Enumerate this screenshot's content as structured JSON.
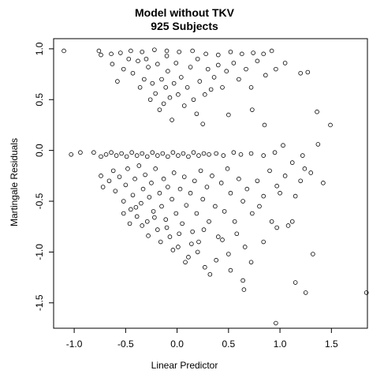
{
  "chart_data": {
    "type": "scatter",
    "title": "Model without TKV",
    "subtitle": "925 Subjects",
    "xlabel": "Linear Predictor",
    "ylabel": "Martingale Residuals",
    "xlim": [
      -1.2,
      1.85
    ],
    "ylim": [
      -1.75,
      1.1
    ],
    "x_ticks": [
      -1.0,
      -0.5,
      0.0,
      0.5,
      1.0,
      1.5
    ],
    "y_ticks": [
      -1.5,
      -1.0,
      -0.5,
      0.0,
      0.5,
      1.0
    ],
    "x_tick_labels": [
      "-1.0",
      "-0.5",
      "0.0",
      "0.5",
      "1.0",
      "1.5"
    ],
    "y_tick_labels": [
      "-1.5",
      "-1.0",
      "-0.5",
      "0.0",
      "0.5",
      "1.0"
    ],
    "grid": false,
    "marker": "open-circle",
    "n_points": 925,
    "points": [
      [
        -1.1,
        0.98
      ],
      [
        -0.76,
        0.98
      ],
      [
        -0.74,
        0.94
      ],
      [
        -0.64,
        0.95
      ],
      [
        -0.55,
        0.96
      ],
      [
        -0.45,
        0.98
      ],
      [
        -0.34,
        0.97
      ],
      [
        -0.22,
        0.99
      ],
      [
        -0.1,
        0.98
      ],
      [
        0.02,
        0.97
      ],
      [
        0.15,
        0.98
      ],
      [
        0.28,
        0.95
      ],
      [
        0.4,
        0.94
      ],
      [
        0.52,
        0.97
      ],
      [
        0.63,
        0.95
      ],
      [
        0.74,
        0.96
      ],
      [
        0.84,
        0.95
      ],
      [
        0.92,
        0.98
      ],
      [
        1.2,
        0.76
      ],
      [
        1.27,
        0.77
      ],
      [
        1.36,
        0.38
      ],
      [
        1.49,
        0.25
      ],
      [
        0.85,
        0.25
      ],
      [
        0.73,
        0.4
      ],
      [
        0.5,
        0.35
      ],
      [
        -0.63,
        0.85
      ],
      [
        -0.58,
        0.68
      ],
      [
        -0.52,
        0.8
      ],
      [
        -0.47,
        0.9
      ],
      [
        -0.43,
        0.76
      ],
      [
        -0.38,
        0.88
      ],
      [
        -0.36,
        0.62
      ],
      [
        -0.32,
        0.7
      ],
      [
        -0.28,
        0.82
      ],
      [
        -0.26,
        0.5
      ],
      [
        -0.24,
        0.66
      ],
      [
        -0.21,
        0.56
      ],
      [
        -0.19,
        0.85
      ],
      [
        -0.17,
        0.4
      ],
      [
        -0.15,
        0.7
      ],
      [
        -0.13,
        0.46
      ],
      [
        -0.11,
        0.62
      ],
      [
        -0.09,
        0.78
      ],
      [
        -0.07,
        0.52
      ],
      [
        -0.05,
        0.3
      ],
      [
        -0.03,
        0.66
      ],
      [
        -0.01,
        0.86
      ],
      [
        0.01,
        0.55
      ],
      [
        0.04,
        0.72
      ],
      [
        0.07,
        0.44
      ],
      [
        0.1,
        0.62
      ],
      [
        0.13,
        0.82
      ],
      [
        0.16,
        0.5
      ],
      [
        0.19,
        0.36
      ],
      [
        0.22,
        0.68
      ],
      [
        0.25,
        0.26
      ],
      [
        0.27,
        0.55
      ],
      [
        0.3,
        0.8
      ],
      [
        0.33,
        0.6
      ],
      [
        0.36,
        0.72
      ],
      [
        0.4,
        0.84
      ],
      [
        0.44,
        0.62
      ],
      [
        0.48,
        0.78
      ],
      [
        0.55,
        0.86
      ],
      [
        0.6,
        0.7
      ],
      [
        0.67,
        0.8
      ],
      [
        0.72,
        0.62
      ],
      [
        0.78,
        0.88
      ],
      [
        0.86,
        0.74
      ],
      [
        0.96,
        0.8
      ],
      [
        1.05,
        0.86
      ],
      [
        -0.3,
        0.9
      ],
      [
        -0.1,
        0.93
      ],
      [
        0.2,
        0.9
      ],
      [
        -1.03,
        -0.04
      ],
      [
        -0.94,
        -0.02
      ],
      [
        -0.81,
        -0.02
      ],
      [
        -0.74,
        -0.06
      ],
      [
        -0.69,
        -0.04
      ],
      [
        -0.64,
        -0.02
      ],
      [
        -0.59,
        -0.05
      ],
      [
        -0.54,
        -0.03
      ],
      [
        -0.49,
        -0.06
      ],
      [
        -0.44,
        -0.02
      ],
      [
        -0.39,
        -0.05
      ],
      [
        -0.34,
        -0.03
      ],
      [
        -0.29,
        -0.06
      ],
      [
        -0.24,
        -0.02
      ],
      [
        -0.19,
        -0.05
      ],
      [
        -0.14,
        -0.03
      ],
      [
        -0.09,
        -0.06
      ],
      [
        -0.04,
        -0.02
      ],
      [
        0.01,
        -0.05
      ],
      [
        0.06,
        -0.03
      ],
      [
        0.11,
        -0.06
      ],
      [
        0.16,
        -0.02
      ],
      [
        0.21,
        -0.05
      ],
      [
        0.26,
        -0.03
      ],
      [
        0.31,
        -0.04
      ],
      [
        0.38,
        -0.03
      ],
      [
        0.45,
        -0.05
      ],
      [
        0.55,
        -0.02
      ],
      [
        0.62,
        -0.04
      ],
      [
        0.72,
        -0.03
      ],
      [
        0.84,
        -0.05
      ],
      [
        0.95,
        -0.02
      ],
      [
        1.22,
        -0.05
      ],
      [
        1.24,
        -0.18
      ],
      [
        1.03,
        0.05
      ],
      [
        1.37,
        0.06
      ],
      [
        -0.74,
        -0.25
      ],
      [
        -0.72,
        -0.36
      ],
      [
        -0.66,
        -0.3
      ],
      [
        -0.62,
        -0.2
      ],
      [
        -0.6,
        -0.4
      ],
      [
        -0.56,
        -0.26
      ],
      [
        -0.52,
        -0.5
      ],
      [
        -0.5,
        -0.34
      ],
      [
        -0.48,
        -0.18
      ],
      [
        -0.45,
        -0.58
      ],
      [
        -0.43,
        -0.44
      ],
      [
        -0.41,
        -0.28
      ],
      [
        -0.39,
        -0.65
      ],
      [
        -0.37,
        -0.15
      ],
      [
        -0.35,
        -0.52
      ],
      [
        -0.33,
        -0.38
      ],
      [
        -0.31,
        -0.24
      ],
      [
        -0.29,
        -0.7
      ],
      [
        -0.27,
        -0.46
      ],
      [
        -0.25,
        -0.32
      ],
      [
        -0.23,
        -0.6
      ],
      [
        -0.21,
        -0.18
      ],
      [
        -0.19,
        -0.78
      ],
      [
        -0.17,
        -0.42
      ],
      [
        -0.15,
        -0.55
      ],
      [
        -0.13,
        -0.28
      ],
      [
        -0.11,
        -0.68
      ],
      [
        -0.09,
        -0.36
      ],
      [
        -0.07,
        -0.85
      ],
      [
        -0.05,
        -0.48
      ],
      [
        -0.03,
        -0.22
      ],
      [
        -0.01,
        -0.62
      ],
      [
        0.01,
        -0.95
      ],
      [
        0.03,
        -0.38
      ],
      [
        0.05,
        -0.72
      ],
      [
        0.07,
        -0.26
      ],
      [
        0.09,
        -0.54
      ],
      [
        0.11,
        -1.05
      ],
      [
        0.13,
        -0.42
      ],
      [
        0.15,
        -0.8
      ],
      [
        0.17,
        -0.3
      ],
      [
        0.19,
        -0.62
      ],
      [
        0.21,
        -0.9
      ],
      [
        0.23,
        -0.2
      ],
      [
        0.25,
        -0.48
      ],
      [
        0.27,
        -1.15
      ],
      [
        0.29,
        -0.36
      ],
      [
        0.31,
        -0.7
      ],
      [
        0.34,
        -0.25
      ],
      [
        0.37,
        -0.55
      ],
      [
        0.4,
        -0.85
      ],
      [
        0.43,
        -0.32
      ],
      [
        0.46,
        -0.6
      ],
      [
        0.49,
        -0.18
      ],
      [
        0.52,
        -0.42
      ],
      [
        0.56,
        -0.7
      ],
      [
        0.6,
        -0.28
      ],
      [
        0.64,
        -0.5
      ],
      [
        0.68,
        -0.38
      ],
      [
        0.73,
        -0.62
      ],
      [
        0.78,
        -0.3
      ],
      [
        0.84,
        -0.45
      ],
      [
        0.9,
        -0.2
      ],
      [
        0.97,
        -0.35
      ],
      [
        1.05,
        -0.25
      ],
      [
        1.12,
        -0.12
      ],
      [
        1.2,
        -0.3
      ],
      [
        1.3,
        -0.22
      ],
      [
        1.42,
        -0.32
      ],
      [
        -0.52,
        -0.62
      ],
      [
        -0.46,
        -0.72
      ],
      [
        -0.4,
        -0.56
      ],
      [
        -0.34,
        -0.74
      ],
      [
        -0.28,
        -0.84
      ],
      [
        -0.22,
        -0.66
      ],
      [
        -0.16,
        -0.9
      ],
      [
        -0.1,
        -0.76
      ],
      [
        -0.04,
        -0.98
      ],
      [
        0.02,
        -0.82
      ],
      [
        0.08,
        -1.1
      ],
      [
        0.14,
        -0.92
      ],
      [
        0.2,
        -1.0
      ],
      [
        0.26,
        -0.78
      ],
      [
        0.32,
        -1.22
      ],
      [
        0.38,
        -1.08
      ],
      [
        0.44,
        -0.88
      ],
      [
        0.5,
        -1.02
      ],
      [
        0.52,
        -1.18
      ],
      [
        0.64,
        -1.28
      ],
      [
        0.65,
        -1.37
      ],
      [
        0.92,
        -0.7
      ],
      [
        0.97,
        -0.76
      ],
      [
        0.96,
        -1.7
      ],
      [
        1.08,
        -0.74
      ],
      [
        1.12,
        -0.7
      ],
      [
        1.15,
        -1.3
      ],
      [
        1.25,
        -1.4
      ],
      [
        1.32,
        -1.02
      ],
      [
        1.84,
        -1.4
      ],
      [
        0.84,
        -0.9
      ],
      [
        0.8,
        -0.55
      ],
      [
        1.0,
        -0.42
      ],
      [
        1.15,
        -0.45
      ],
      [
        0.66,
        -0.95
      ],
      [
        0.58,
        -0.82
      ],
      [
        0.72,
        -1.1
      ]
    ]
  }
}
